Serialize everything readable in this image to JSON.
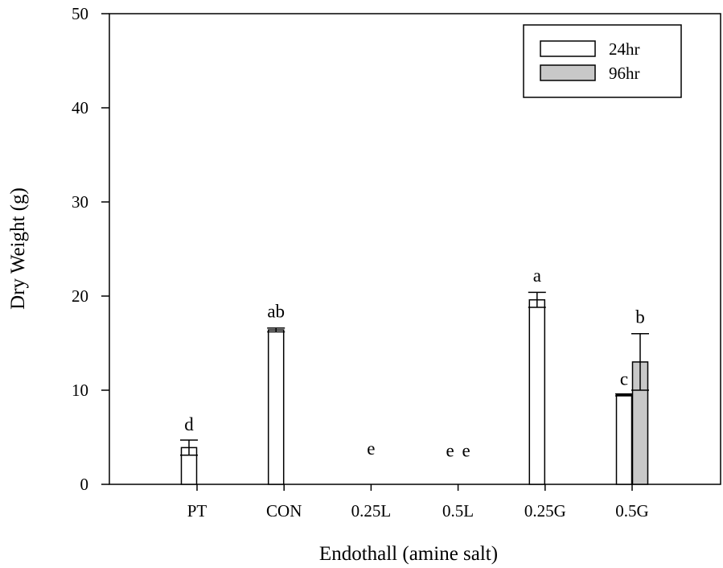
{
  "chart_data": {
    "type": "bar",
    "title": "",
    "xlabel": "Endothall (amine salt)",
    "ylabel": "Dry Weight (g)",
    "ylim": [
      0,
      50
    ],
    "yticks": [
      0,
      10,
      20,
      30,
      40,
      50
    ],
    "grid": false,
    "legend_position": "top-right",
    "categories": [
      "PT",
      "CON",
      "0.25L",
      "0.5L",
      "0.25G",
      "0.5G"
    ],
    "series": [
      {
        "name": "24hr",
        "color": "#ffffff",
        "values": [
          3.9,
          16.4,
          null,
          null,
          19.6,
          9.5
        ],
        "errors": [
          0.8,
          0.2,
          null,
          null,
          0.8,
          0.1
        ]
      },
      {
        "name": "96hr",
        "color": "#c8c8c8",
        "values": [
          null,
          null,
          null,
          null,
          null,
          13.0
        ],
        "errors": [
          null,
          null,
          null,
          null,
          null,
          3.0
        ]
      }
    ],
    "annotations": [
      {
        "category": "PT",
        "series": "24hr",
        "y": 5.4,
        "text": "d"
      },
      {
        "category": "CON",
        "series": "24hr",
        "y": 17.4,
        "text": "ab"
      },
      {
        "category": "0.25L",
        "series": "center",
        "y": 2.8,
        "text": "e"
      },
      {
        "category": "0.5L",
        "series": "24hr",
        "y": 2.6,
        "text": "e"
      },
      {
        "category": "0.5L",
        "series": "96hr",
        "y": 2.6,
        "text": "e"
      },
      {
        "category": "0.25G",
        "series": "24hr",
        "y": 21.2,
        "text": "a"
      },
      {
        "category": "0.5G",
        "series": "24hr",
        "y": 10.2,
        "text": "c"
      },
      {
        "category": "0.5G",
        "series": "96hr",
        "y": 16.8,
        "text": "b"
      }
    ]
  }
}
